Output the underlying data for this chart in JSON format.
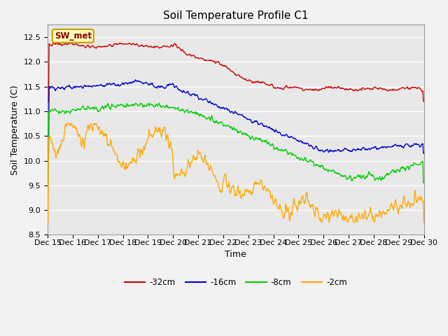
{
  "title": "Soil Temperature Profile C1",
  "xlabel": "Time",
  "ylabel": "Soil Temperature (C)",
  "ylim": [
    8.5,
    12.75
  ],
  "annotation_label": "SW_met",
  "series_labels": [
    "-32cm",
    "-16cm",
    "-8cm",
    "-2cm"
  ],
  "series_colors": [
    "#cc0000",
    "#0000cc",
    "#00cc00",
    "#ffaa00"
  ],
  "x_tick_labels": [
    "Dec 15",
    "Dec 16",
    "Dec 17",
    "Dec 18",
    "Dec 19",
    "Dec 20",
    "Dec 21",
    "Dec 22",
    "Dec 23",
    "Dec 24",
    "Dec 25",
    "Dec 26",
    "Dec 27",
    "Dec 28",
    "Dec 29",
    "Dec 30"
  ],
  "plot_bg_color": "#e8e8e8",
  "fig_bg_color": "#f2f2f2",
  "grid_color": "#ffffff",
  "title_fontsize": 11,
  "axis_label_fontsize": 9,
  "tick_fontsize": 8
}
